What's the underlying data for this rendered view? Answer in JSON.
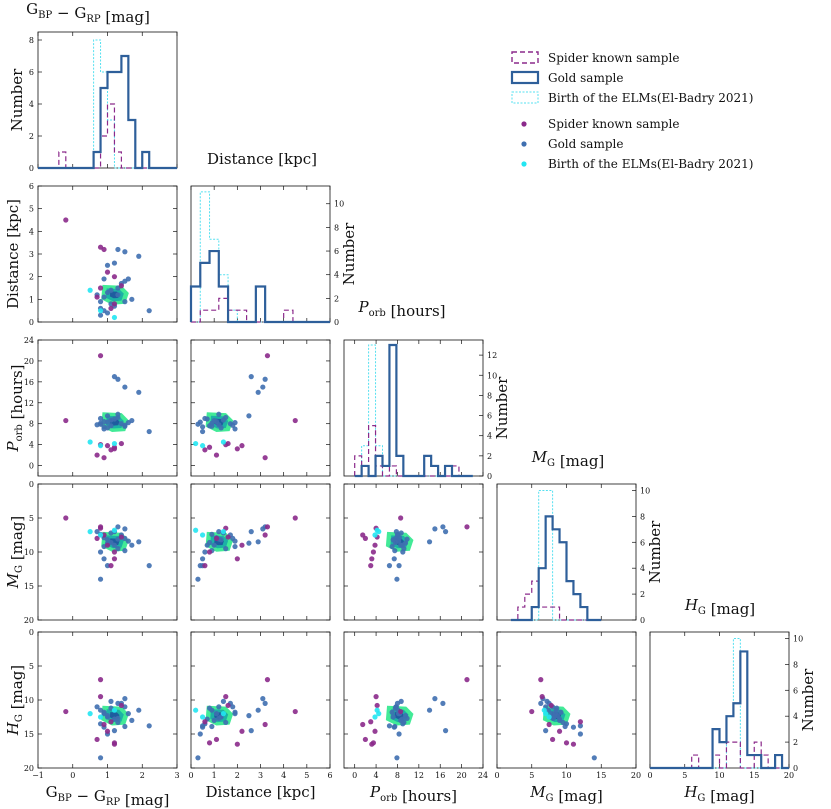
{
  "colors": {
    "spider": "#8b2a8b",
    "gold": "#2e5f9a",
    "gold_pt": "#3f6fb0",
    "elm": "#55e0f0",
    "elm_pt": "#22e6f2",
    "contour_outer": "#2ee88c",
    "contour_mid": "#15a7a7",
    "contour_inner": "#1f4f9e"
  },
  "legend": {
    "hist": [
      "Spider known sample",
      "Gold sample",
      "Birth of the ELMs(El-Badry 2021)"
    ],
    "scatter": [
      "Spider known sample",
      "Gold sample",
      "Birth of the ELMs(El-Badry 2021)"
    ]
  },
  "labels": {
    "bprp": "G_BP − G_RP [mag]",
    "dist": "Distance [kpc]",
    "porb": "P_orb [hours]",
    "mg": "M_G [mag]",
    "hg": "H_G [mag]",
    "number": "Number"
  },
  "chart_data": {
    "type": "corner",
    "variables": [
      {
        "key": "bprp",
        "range": [
          -1,
          3
        ],
        "ticks": [
          -1,
          0,
          1,
          2,
          3
        ],
        "reversed": false
      },
      {
        "key": "dist",
        "range": [
          0,
          6
        ],
        "ticks": [
          0,
          1,
          2,
          3,
          4,
          5,
          6
        ],
        "reversed": false
      },
      {
        "key": "porb",
        "range": [
          -2,
          24
        ],
        "ticks": [
          0,
          4,
          8,
          12,
          16,
          20,
          24
        ],
        "reversed": false
      },
      {
        "key": "mg",
        "range": [
          0,
          20
        ],
        "ticks": [
          0,
          5,
          10,
          15,
          20
        ],
        "reversed": true
      },
      {
        "key": "hg",
        "range": [
          0,
          20
        ],
        "ticks": [
          0,
          5,
          10,
          15,
          20
        ],
        "reversed": true
      }
    ],
    "bottom_tick_labels": [
      [
        "−1",
        "0",
        "1",
        "2",
        "3"
      ],
      [
        "0",
        "1",
        "2",
        "3",
        "4",
        "5",
        "6"
      ],
      [
        "0",
        "4",
        "8",
        "12",
        "16",
        "20",
        "24"
      ],
      [
        "0",
        "5",
        "10",
        "15",
        "20"
      ],
      [
        "0",
        "5",
        "10",
        "15",
        "20"
      ]
    ],
    "left_tick_labels": [
      null,
      [
        "0",
        "1",
        "2",
        "3",
        "4",
        "5",
        "6"
      ],
      [
        "0",
        "4",
        "8",
        "12",
        "16",
        "20",
        "24"
      ],
      [
        "0",
        "5",
        "10",
        "15",
        "20"
      ],
      [
        "0",
        "5",
        "10",
        "15",
        "20"
      ]
    ],
    "histograms": [
      {
        "var": "bprp",
        "ymax": 8.5,
        "yticks": [
          0,
          2,
          4,
          6,
          8
        ],
        "edges": [
          -1.0,
          -0.8,
          -0.6,
          -0.4,
          -0.2,
          0.0,
          0.2,
          0.4,
          0.6,
          0.8,
          1.0,
          1.2,
          1.4,
          1.6,
          1.8,
          2.0,
          2.2,
          2.4,
          2.6,
          2.8,
          3.0
        ],
        "gold": [
          0,
          0,
          0,
          0,
          0,
          0,
          0,
          0,
          1,
          5,
          6,
          6,
          7,
          3,
          0,
          1,
          0,
          0,
          0,
          0
        ],
        "spider": [
          0,
          0,
          0,
          1,
          0,
          0,
          0,
          0,
          0,
          2,
          4,
          1,
          0,
          0,
          0,
          0,
          0,
          0,
          0,
          0
        ],
        "elm": [
          0,
          0,
          0,
          0,
          0,
          0,
          0,
          0,
          8,
          6,
          3,
          0,
          0,
          0,
          0,
          0,
          0,
          0,
          0,
          0
        ]
      },
      {
        "var": "dist",
        "ymax": 11.5,
        "yticks": [
          0,
          2,
          4,
          6,
          8,
          10
        ],
        "edges": [
          0.0,
          0.4,
          0.8,
          1.2,
          1.6,
          2.0,
          2.4,
          2.8,
          3.2,
          3.6,
          4.0,
          4.4,
          4.8,
          5.2,
          5.6,
          6.0
        ],
        "gold": [
          3,
          5,
          6,
          3,
          0,
          0,
          0,
          3,
          0,
          0,
          0,
          0,
          0,
          0,
          0
        ],
        "spider": [
          0,
          1,
          1,
          2,
          1,
          1,
          0,
          0,
          0,
          0,
          1,
          0,
          0,
          0,
          0
        ],
        "elm": [
          0,
          11,
          7,
          4,
          1,
          0,
          0,
          0,
          0,
          0,
          0,
          0,
          0,
          0,
          0
        ]
      },
      {
        "var": "porb",
        "ymax": 13.5,
        "yticks": [
          0,
          2,
          4,
          6,
          8,
          10,
          12
        ],
        "edges": [
          0,
          1.3,
          2.6,
          3.9,
          5.2,
          6.5,
          7.8,
          9.1,
          10.4,
          11.7,
          13.0,
          14.3,
          15.6,
          16.9,
          18.2,
          19.5,
          20.8,
          22.1
        ],
        "gold": [
          0,
          1,
          0,
          2,
          1,
          13,
          2,
          0,
          0,
          0,
          2,
          1,
          0,
          1,
          0,
          0,
          0
        ],
        "spider": [
          2,
          1,
          5,
          1,
          0,
          1,
          0,
          0,
          0,
          0,
          0,
          0,
          0,
          0,
          1,
          0,
          0
        ],
        "elm": [
          0,
          3,
          13,
          3,
          0,
          0,
          0,
          0,
          0,
          0,
          0,
          0,
          0,
          0,
          0,
          0,
          0
        ]
      },
      {
        "var": "mg",
        "ymax": 10.5,
        "yticks": [
          0,
          2,
          4,
          6,
          8,
          10
        ],
        "edges": [
          2.0,
          3.0,
          4.0,
          5.0,
          6.0,
          7.0,
          8.0,
          9.0,
          10.0,
          11.0,
          12.0,
          13.0,
          14.0,
          15.0
        ],
        "gold": [
          0,
          0,
          0,
          1,
          4,
          8,
          7,
          6,
          3,
          2,
          1,
          0,
          0
        ],
        "spider": [
          0,
          1,
          2,
          3,
          1,
          1,
          1,
          0,
          0,
          0,
          0,
          0,
          0
        ],
        "elm": [
          0,
          0,
          0,
          0,
          10,
          10,
          0,
          0,
          0,
          0,
          0,
          0,
          0
        ]
      },
      {
        "var": "hg",
        "ymax": 10.5,
        "yticks": [
          0,
          2,
          4,
          6,
          8,
          10
        ],
        "edges": [
          0,
          1,
          2,
          3,
          4,
          5,
          6,
          7,
          8,
          9,
          10,
          11,
          12,
          13,
          14,
          15,
          16,
          17,
          18,
          19,
          20
        ],
        "gold": [
          0,
          0,
          0,
          0,
          0,
          0,
          0,
          0,
          0,
          3,
          2,
          4,
          5,
          9,
          1,
          1,
          0,
          0,
          1,
          0
        ],
        "spider": [
          0,
          0,
          0,
          0,
          0,
          0,
          1,
          0,
          0,
          1,
          0,
          2,
          2,
          0,
          0,
          2,
          1,
          0,
          0,
          0
        ],
        "elm": [
          0,
          0,
          0,
          0,
          0,
          0,
          0,
          0,
          0,
          0,
          0,
          4,
          10,
          0,
          0,
          0,
          0,
          0,
          0,
          0
        ]
      }
    ],
    "points": {
      "spider": [
        {
          "bprp": -0.2,
          "dist": 4.5,
          "porb": 8.6,
          "mg": 5.0,
          "hg": 11.7
        },
        {
          "bprp": 0.8,
          "dist": 3.3,
          "porb": 21.0,
          "mg": 6.3,
          "hg": 7.0
        },
        {
          "bprp": 0.9,
          "dist": 3.2,
          "porb": 1.5,
          "mg": 7.5,
          "hg": 13.6
        },
        {
          "bprp": 1.0,
          "dist": 2.2,
          "porb": 3.8,
          "mg": 9.0,
          "hg": 14.6
        },
        {
          "bprp": 1.2,
          "dist": 2.0,
          "porb": 3.2,
          "mg": 11.0,
          "hg": 16.5
        },
        {
          "bprp": 0.7,
          "dist": 1.1,
          "porb": 2.0,
          "mg": 8.0,
          "hg": 15.8
        },
        {
          "bprp": 1.2,
          "dist": 0.8,
          "porb": 3.5,
          "mg": 10.0,
          "hg": 16.3
        },
        {
          "bprp": 1.4,
          "dist": 1.6,
          "porb": 4.2,
          "mg": 7.8,
          "hg": 10.8
        },
        {
          "bprp": 1.1,
          "dist": 0.6,
          "porb": 3.0,
          "mg": 12.0,
          "hg": 13.2
        },
        {
          "bprp": 0.8,
          "dist": 1.5,
          "porb": 4.0,
          "mg": 6.5,
          "hg": 9.5
        }
      ],
      "gold": [
        {
          "bprp": 0.7,
          "dist": 1.2,
          "porb": 7.8,
          "mg": 7.0,
          "hg": 11.0
        },
        {
          "bprp": 0.8,
          "dist": 0.9,
          "porb": 8.1,
          "mg": 7.4,
          "hg": 11.5
        },
        {
          "bprp": 0.9,
          "dist": 1.1,
          "porb": 8.4,
          "mg": 7.9,
          "hg": 12.0
        },
        {
          "bprp": 1.0,
          "dist": 1.3,
          "porb": 7.2,
          "mg": 8.2,
          "hg": 12.5
        },
        {
          "bprp": 1.1,
          "dist": 0.8,
          "porb": 7.6,
          "mg": 8.6,
          "hg": 11.2
        },
        {
          "bprp": 1.2,
          "dist": 0.7,
          "porb": 8.9,
          "mg": 9.0,
          "hg": 12.8
        },
        {
          "bprp": 1.3,
          "dist": 1.5,
          "porb": 9.2,
          "mg": 9.5,
          "hg": 13.3
        },
        {
          "bprp": 1.4,
          "dist": 1.7,
          "porb": 8.0,
          "mg": 7.5,
          "hg": 10.5
        },
        {
          "bprp": 1.5,
          "dist": 1.8,
          "porb": 7.7,
          "mg": 8.0,
          "hg": 11.0
        },
        {
          "bprp": 1.6,
          "dist": 1.9,
          "porb": 8.2,
          "mg": 8.4,
          "hg": 12.0
        },
        {
          "bprp": 1.7,
          "dist": 1.0,
          "porb": 8.6,
          "mg": 9.0,
          "hg": 13.0
        },
        {
          "bprp": 0.8,
          "dist": 0.6,
          "porb": 9.0,
          "mg": 10.0,
          "hg": 13.5
        },
        {
          "bprp": 0.9,
          "dist": 0.5,
          "porb": 7.4,
          "mg": 11.0,
          "hg": 14.0
        },
        {
          "bprp": 1.0,
          "dist": 0.4,
          "porb": 8.3,
          "mg": 12.0,
          "hg": 15.0
        },
        {
          "bprp": 0.8,
          "dist": 0.3,
          "porb": 7.9,
          "mg": 14.0,
          "hg": 18.5
        },
        {
          "bprp": 2.2,
          "dist": 0.5,
          "porb": 6.5,
          "mg": 12.0,
          "hg": 13.8
        },
        {
          "bprp": 1.9,
          "dist": 2.9,
          "porb": 14.0,
          "mg": 8.5,
          "hg": 11.5
        },
        {
          "bprp": 1.5,
          "dist": 3.1,
          "porb": 15.0,
          "mg": 6.6,
          "hg": 9.8
        },
        {
          "bprp": 1.3,
          "dist": 3.2,
          "porb": 16.5,
          "mg": 6.3,
          "hg": 10.5
        },
        {
          "bprp": 1.2,
          "dist": 2.6,
          "porb": 17.0,
          "mg": 7.0,
          "hg": 14.5
        },
        {
          "bprp": 1.0,
          "dist": 2.5,
          "porb": 9.5,
          "mg": 8.7,
          "hg": 12.3
        },
        {
          "bprp": 0.9,
          "dist": 1.9,
          "porb": 7.0,
          "mg": 9.2,
          "hg": 11.8
        },
        {
          "bprp": 1.1,
          "dist": 1.4,
          "porb": 8.7,
          "mg": 7.2,
          "hg": 10.2
        },
        {
          "bprp": 1.3,
          "dist": 1.2,
          "porb": 9.8,
          "mg": 8.1,
          "hg": 12.7
        },
        {
          "bprp": 1.5,
          "dist": 0.9,
          "porb": 7.5,
          "mg": 9.8,
          "hg": 13.9
        }
      ],
      "elm": [
        {
          "bprp": 0.5,
          "dist": 1.4,
          "porb": 4.5,
          "mg": 7.0,
          "hg": 12.0
        },
        {
          "bprp": 0.8,
          "dist": 0.5,
          "porb": 3.8,
          "mg": 7.5,
          "hg": 12.5
        },
        {
          "bprp": 1.2,
          "dist": 0.2,
          "porb": 4.2,
          "mg": 6.8,
          "hg": 11.5
        }
      ]
    }
  }
}
